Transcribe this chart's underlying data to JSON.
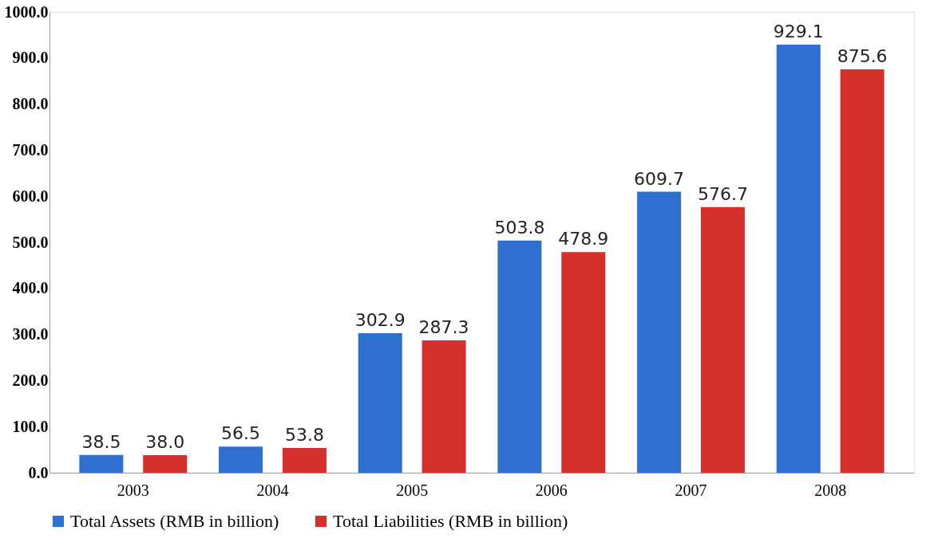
{
  "chart_data": {
    "type": "bar",
    "categories": [
      "2003",
      "2004",
      "2005",
      "2006",
      "2007",
      "2008"
    ],
    "series": [
      {
        "name": "Total Assets (RMB in billion)",
        "color": "#2f6fd0",
        "values": [
          38.5,
          56.5,
          302.9,
          503.8,
          609.7,
          929.1
        ],
        "value_labels": [
          "38.5",
          "56.5",
          "302.9",
          "503.8",
          "609.7",
          "929.1"
        ]
      },
      {
        "name": "Total Liabilities (RMB in billion)",
        "color": "#d6302c",
        "values": [
          38.0,
          53.8,
          287.3,
          478.9,
          576.7,
          875.6
        ],
        "value_labels": [
          "38.0",
          "53.8",
          "287.3",
          "478.9",
          "576.7",
          "875.6"
        ]
      }
    ],
    "ylim": [
      0,
      1000
    ],
    "yticks": [
      {
        "value": 0,
        "label": "0.0"
      },
      {
        "value": 100,
        "label": "100.0"
      },
      {
        "value": 200,
        "label": "200.0"
      },
      {
        "value": 300,
        "label": "300.0"
      },
      {
        "value": 400,
        "label": "400.0"
      },
      {
        "value": 500,
        "label": "500.0"
      },
      {
        "value": 600,
        "label": "600.0"
      },
      {
        "value": 700,
        "label": "700.0"
      },
      {
        "value": 800,
        "label": "800.0"
      },
      {
        "value": 900,
        "label": "900.0"
      },
      {
        "value": 1000,
        "label": "1000.0"
      }
    ],
    "grid": false,
    "legend": "bottom"
  }
}
